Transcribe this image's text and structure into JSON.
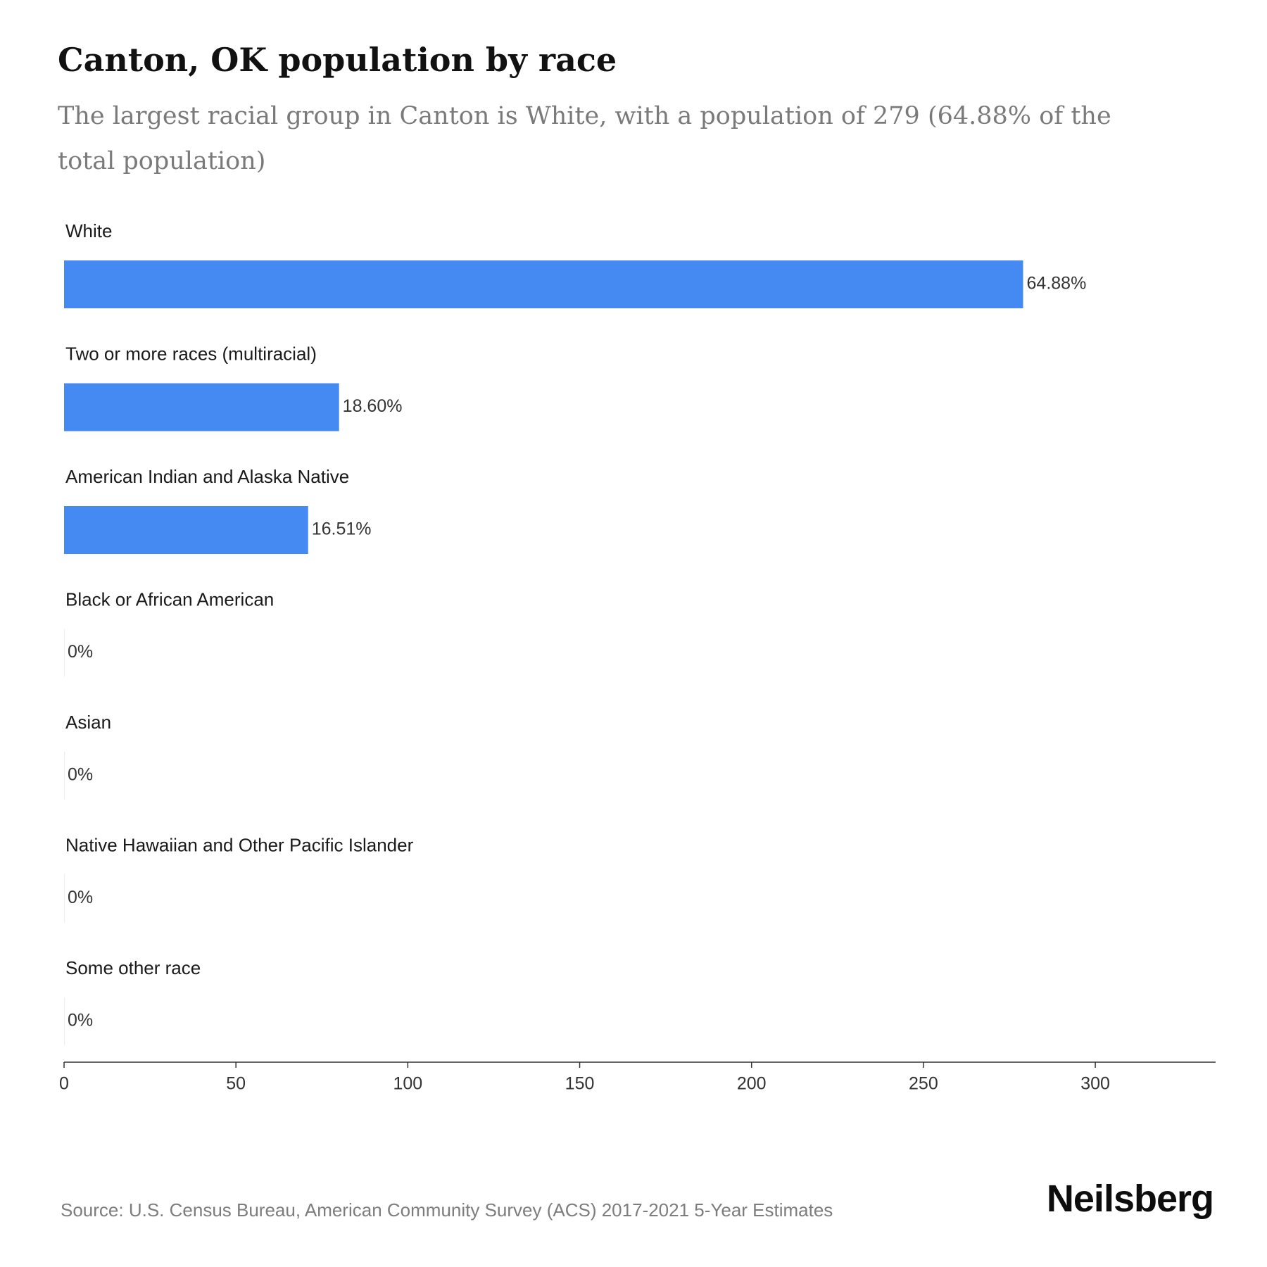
{
  "header": {
    "title": "Canton, OK population by race",
    "subtitle": "The largest racial group in Canton is White, with a population of 279 (64.88% of the total population)"
  },
  "chart_data": {
    "type": "bar",
    "orientation": "horizontal",
    "categories": [
      "White",
      "Two or more races (multiracial)",
      "American Indian and Alaska Native",
      "Black or African American",
      "Asian",
      "Native Hawaiian and Other Pacific Islander",
      "Some other race"
    ],
    "values": [
      279,
      80,
      71,
      0,
      0,
      0,
      0
    ],
    "data_labels": [
      "64.88%",
      "18.60%",
      "16.51%",
      "0%",
      "0%",
      "0%",
      "0%"
    ],
    "xlim": [
      0,
      335
    ],
    "xticks": [
      0,
      50,
      100,
      150,
      200,
      250,
      300
    ],
    "grid": false,
    "bar_color": "#4589f3"
  },
  "footer": {
    "source": "Source: U.S. Census Bureau, American Community Survey (ACS) 2017-2021 5-Year Estimates",
    "logo": "Neilsberg"
  }
}
